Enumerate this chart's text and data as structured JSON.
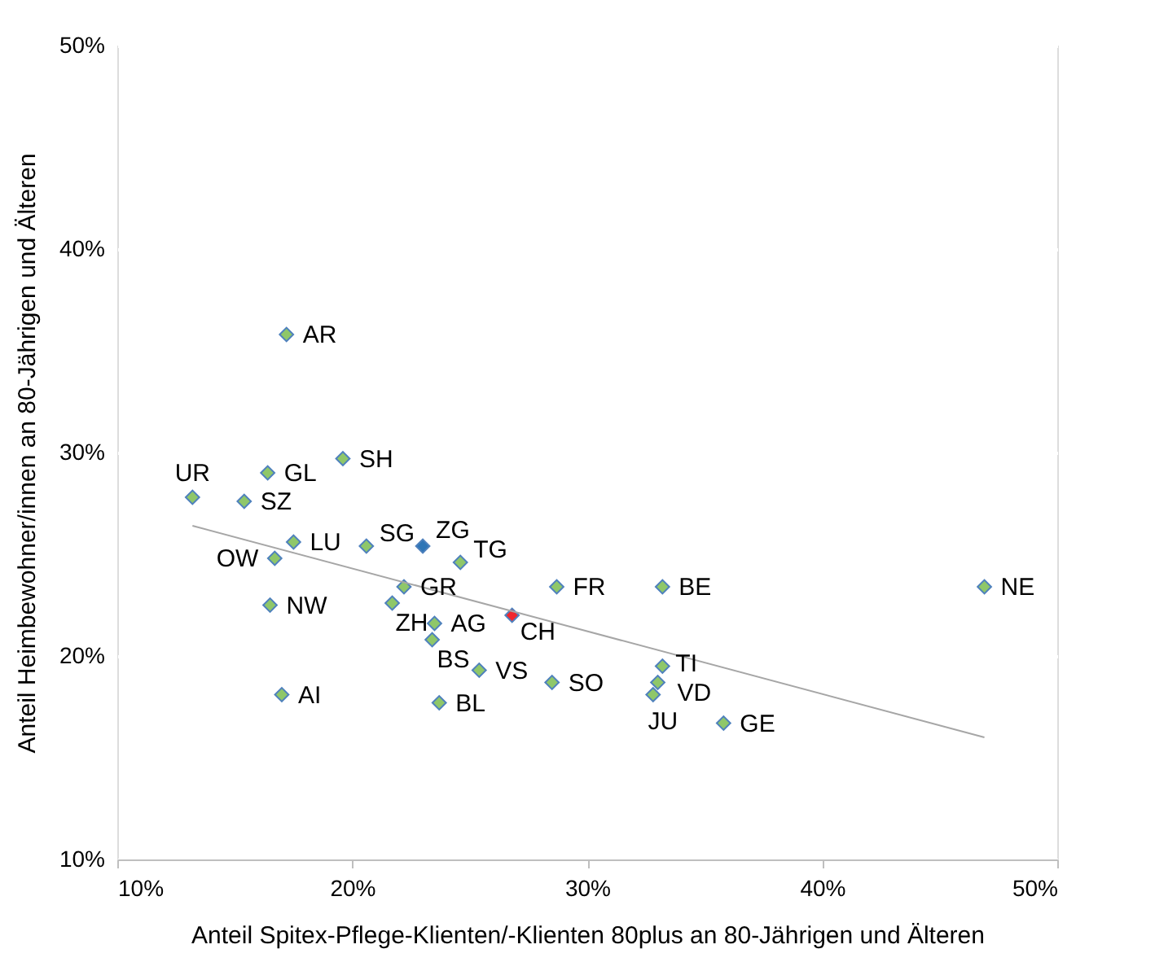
{
  "chart_data": {
    "type": "scatter",
    "xlabel": "Anteil Spitex-Pflege-Klienten/-Klienten 80plus an 80-Jährigen und Älteren",
    "ylabel": "Anteil Heimbewohner/innen an 80-Jährigen und Älteren",
    "xlim": [
      10,
      50
    ],
    "ylim": [
      10,
      50
    ],
    "xticks": [
      {
        "value": 10,
        "label": "10%"
      },
      {
        "value": 20,
        "label": "20%"
      },
      {
        "value": 30,
        "label": "30%"
      },
      {
        "value": 40,
        "label": "40%"
      },
      {
        "value": 50,
        "label": "50%"
      }
    ],
    "yticks": [
      {
        "value": 10,
        "label": "10%"
      },
      {
        "value": 20,
        "label": "20%"
      },
      {
        "value": 30,
        "label": "30%"
      },
      {
        "value": 40,
        "label": "40%"
      },
      {
        "value": 50,
        "label": "50%"
      }
    ],
    "grid": "y",
    "marker": "diamond",
    "series": [
      {
        "x": [
          17.2,
          19.6,
          16.4,
          13.2,
          15.4,
          17.5,
          20.6,
          23.0,
          24.6,
          16.7,
          22.2,
          28.7,
          16.5,
          21.7,
          23.5,
          26.8,
          23.4,
          25.4,
          28.5,
          17.0,
          23.7,
          33.2,
          33.2,
          33.0,
          32.8,
          35.8,
          46.9
        ],
        "values": [
          35.8,
          29.7,
          29.0,
          27.8,
          27.6,
          25.6,
          25.4,
          25.4,
          24.6,
          24.8,
          23.4,
          23.4,
          22.5,
          22.6,
          21.6,
          22.0,
          20.8,
          19.3,
          18.7,
          18.1,
          17.7,
          23.4,
          19.5,
          18.7,
          18.1,
          16.7,
          23.4
        ],
        "colors": [
          "#8fc769",
          "#8fc769",
          "#8fc769",
          "#8fc769",
          "#8fc769",
          "#8fc769",
          "#8fc769",
          "#2e75b6",
          "#8fc769",
          "#8fc769",
          "#8fc769",
          "#8fc769",
          "#8fc769",
          "#8fc769",
          "#8fc769",
          "#f0282d",
          "#8fc769",
          "#8fc769",
          "#8fc769",
          "#8fc769",
          "#8fc769",
          "#8fc769",
          "#8fc769",
          "#8fc769",
          "#8fc769",
          "#8fc769",
          "#8fc769"
        ]
      },
      {
        "type": "line",
        "x": [
          13.2,
          46.9
        ],
        "values": [
          26.4,
          16.0
        ],
        "color": "#a6a6a6",
        "marker": "none"
      }
    ],
    "annotations": [
      {
        "text": "AR",
        "x": 17.2,
        "y": 35.8
      },
      {
        "text": "SH",
        "x": 19.6,
        "y": 29.7
      },
      {
        "text": "GL",
        "x": 16.4,
        "y": 29.0
      },
      {
        "text": "UR",
        "x": 13.2,
        "y": 27.8
      },
      {
        "text": "SZ",
        "x": 15.4,
        "y": 27.6
      },
      {
        "text": "LU",
        "x": 17.5,
        "y": 25.6
      },
      {
        "text": "SG",
        "x": 20.6,
        "y": 25.4
      },
      {
        "text": "ZG",
        "x": 23.0,
        "y": 25.4
      },
      {
        "text": "TG",
        "x": 24.6,
        "y": 24.6
      },
      {
        "text": "OW",
        "x": 16.7,
        "y": 24.8
      },
      {
        "text": "GR",
        "x": 22.2,
        "y": 23.4
      },
      {
        "text": "FR",
        "x": 28.7,
        "y": 23.4
      },
      {
        "text": "NW",
        "x": 16.5,
        "y": 22.5
      },
      {
        "text": "ZH",
        "x": 21.7,
        "y": 22.6
      },
      {
        "text": "AG",
        "x": 23.5,
        "y": 21.6
      },
      {
        "text": "CH",
        "x": 26.8,
        "y": 22.0
      },
      {
        "text": "BS",
        "x": 23.4,
        "y": 20.8
      },
      {
        "text": "VS",
        "x": 25.4,
        "y": 19.3
      },
      {
        "text": "SO",
        "x": 28.5,
        "y": 18.7
      },
      {
        "text": "AI",
        "x": 17.0,
        "y": 18.1
      },
      {
        "text": "BL",
        "x": 23.7,
        "y": 17.7
      },
      {
        "text": "BE",
        "x": 33.2,
        "y": 23.4
      },
      {
        "text": "TI",
        "x": 33.2,
        "y": 19.5
      },
      {
        "text": "VD",
        "x": 33.0,
        "y": 18.7
      },
      {
        "text": "JU",
        "x": 32.8,
        "y": 18.1
      },
      {
        "text": "GE",
        "x": 35.8,
        "y": 16.7
      },
      {
        "text": "NE",
        "x": 46.9,
        "y": 23.4
      }
    ]
  }
}
